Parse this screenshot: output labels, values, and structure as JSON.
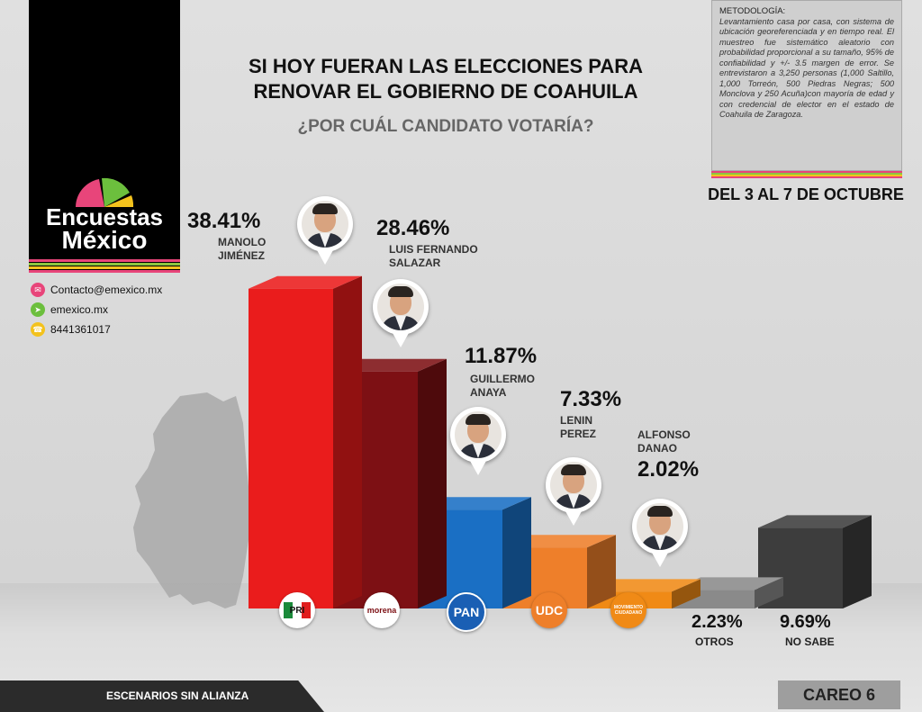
{
  "brand": {
    "name_line1": "Encuestas",
    "name_line2": "México",
    "stripe_colors": [
      "#e8457a",
      "#8cc63f",
      "#f3c21d",
      "#e8457a"
    ]
  },
  "contacts": [
    {
      "icon": "email-icon",
      "color": "#e8457a",
      "text": "Contacto@emexico.mx"
    },
    {
      "icon": "cursor-icon",
      "color": "#6cbf3d",
      "text": "emexico.mx"
    },
    {
      "icon": "phone-icon",
      "color": "#f3c21d",
      "text": "8441361017"
    }
  ],
  "title_line1": "SI HOY FUERAN LAS ELECCIONES PARA",
  "title_line2": "RENOVAR EL GOBIERNO DE COAHUILA",
  "subtitle": "¿POR CUÁL CANDIDATO VOTARÍA?",
  "methodology": {
    "title": "METODOLOGÍA:",
    "body": "Levantamiento casa por casa, con sistema de ubicación georeferenciada y en tiempo real. El muestreo fue sistemático aleatorio con probabilidad proporcional a su tamaño, 95% de confiabilidad y +/- 3.5 margen de error. Se entrevistaron a 3,250 personas (1,000 Saltillo, 1,000 Torreón, 500 Piedras Negras; 500 Monclova y 250 Acuña)con mayoría de edad y con credencial de elector en el estado de Coahuila de Zaragoza."
  },
  "dates": "DEL 3 AL 7 DE OCTUBRE",
  "footer_left": "ESCENARIOS SIN ALIANZA",
  "footer_right": "CAREO 6",
  "chart_data": {
    "type": "bar",
    "title": "SI HOY FUERAN LAS ELECCIONES PARA RENOVAR EL GOBIERNO DE COAHUILA",
    "categories": [
      "MANOLO JIMÉNEZ",
      "LUIS FERNANDO SALAZAR",
      "GUILLERMO ANAYA",
      "LENIN PEREZ",
      "ALFONSO DANAO",
      "OTROS",
      "NO SABE"
    ],
    "values": [
      38.41,
      28.46,
      11.87,
      7.33,
      2.02,
      2.23,
      9.69
    ],
    "value_labels": [
      "38.41%",
      "28.46%",
      "11.87%",
      "7.33%",
      "2.02%",
      "2.23%",
      "9.69%"
    ],
    "name_labels": [
      "MANOLO\nJIMÉNEZ",
      "LUIS FERNANDO\nSALAZAR",
      "GUILLERMO\nANAYA",
      "LENIN\nPEREZ",
      "ALFONSO\nDANAO",
      "OTROS",
      "NO SABE"
    ],
    "parties": [
      "PRI",
      "morena",
      "PAN",
      "UDC",
      "MOVIMIENTO CIUDADANO",
      "",
      ""
    ],
    "colors": [
      "#ea1c1c",
      "#7d1014",
      "#1a6fc4",
      "#ee7f2a",
      "#f08a16",
      "#8a8a8a",
      "#3d3d3d"
    ],
    "ylim": [
      0,
      40
    ],
    "grid": false,
    "legend": "none"
  }
}
